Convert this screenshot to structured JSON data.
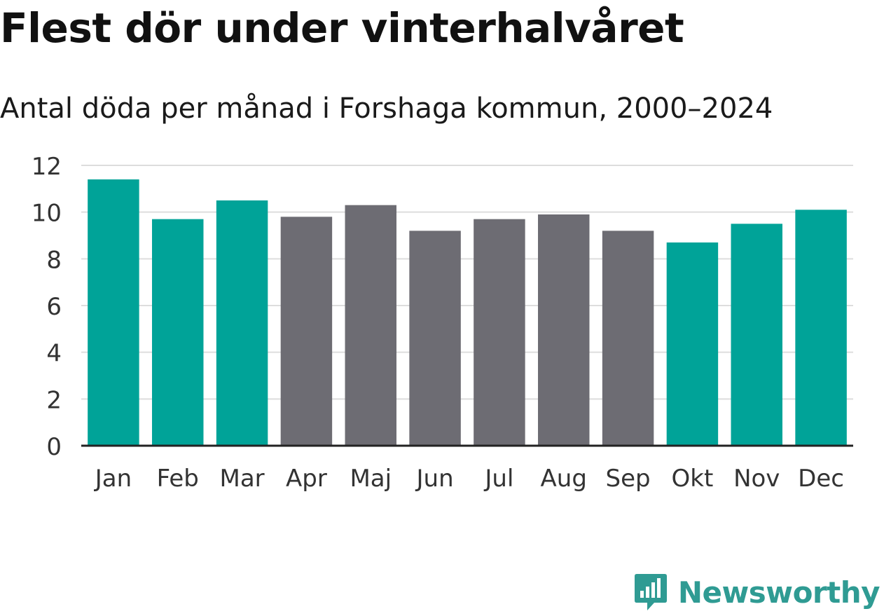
{
  "header": {
    "title": "Flest dör under vinterhalvåret",
    "subtitle": "Antal döda per månad i Forshaga kommun, 2000–2024"
  },
  "brand": {
    "name": "Newsworthy",
    "icon": "newsworthy-logo-icon",
    "color": "#2f9b93"
  },
  "colors": {
    "winter": "#00a398",
    "summer": "#6d6c73",
    "grid": "#dddddd",
    "axis": "#222222",
    "tick_text": "#333333"
  },
  "chart_data": {
    "type": "bar",
    "title": "Flest dör under vinterhalvåret",
    "subtitle": "Antal döda per månad i Forshaga kommun, 2000–2024",
    "xlabel": "",
    "ylabel": "",
    "categories": [
      "Jan",
      "Feb",
      "Mar",
      "Apr",
      "Maj",
      "Jun",
      "Jul",
      "Aug",
      "Sep",
      "Okt",
      "Nov",
      "Dec"
    ],
    "values": [
      11.4,
      9.7,
      10.5,
      9.8,
      10.3,
      9.2,
      9.7,
      9.9,
      9.2,
      8.7,
      9.5,
      10.1
    ],
    "season": [
      "winter",
      "winter",
      "winter",
      "summer",
      "summer",
      "summer",
      "summer",
      "summer",
      "summer",
      "winter",
      "winter",
      "winter"
    ],
    "ylim": [
      0,
      12
    ],
    "yticks": [
      0,
      2,
      4,
      6,
      8,
      10,
      12
    ],
    "grid": true,
    "legend": "none"
  }
}
